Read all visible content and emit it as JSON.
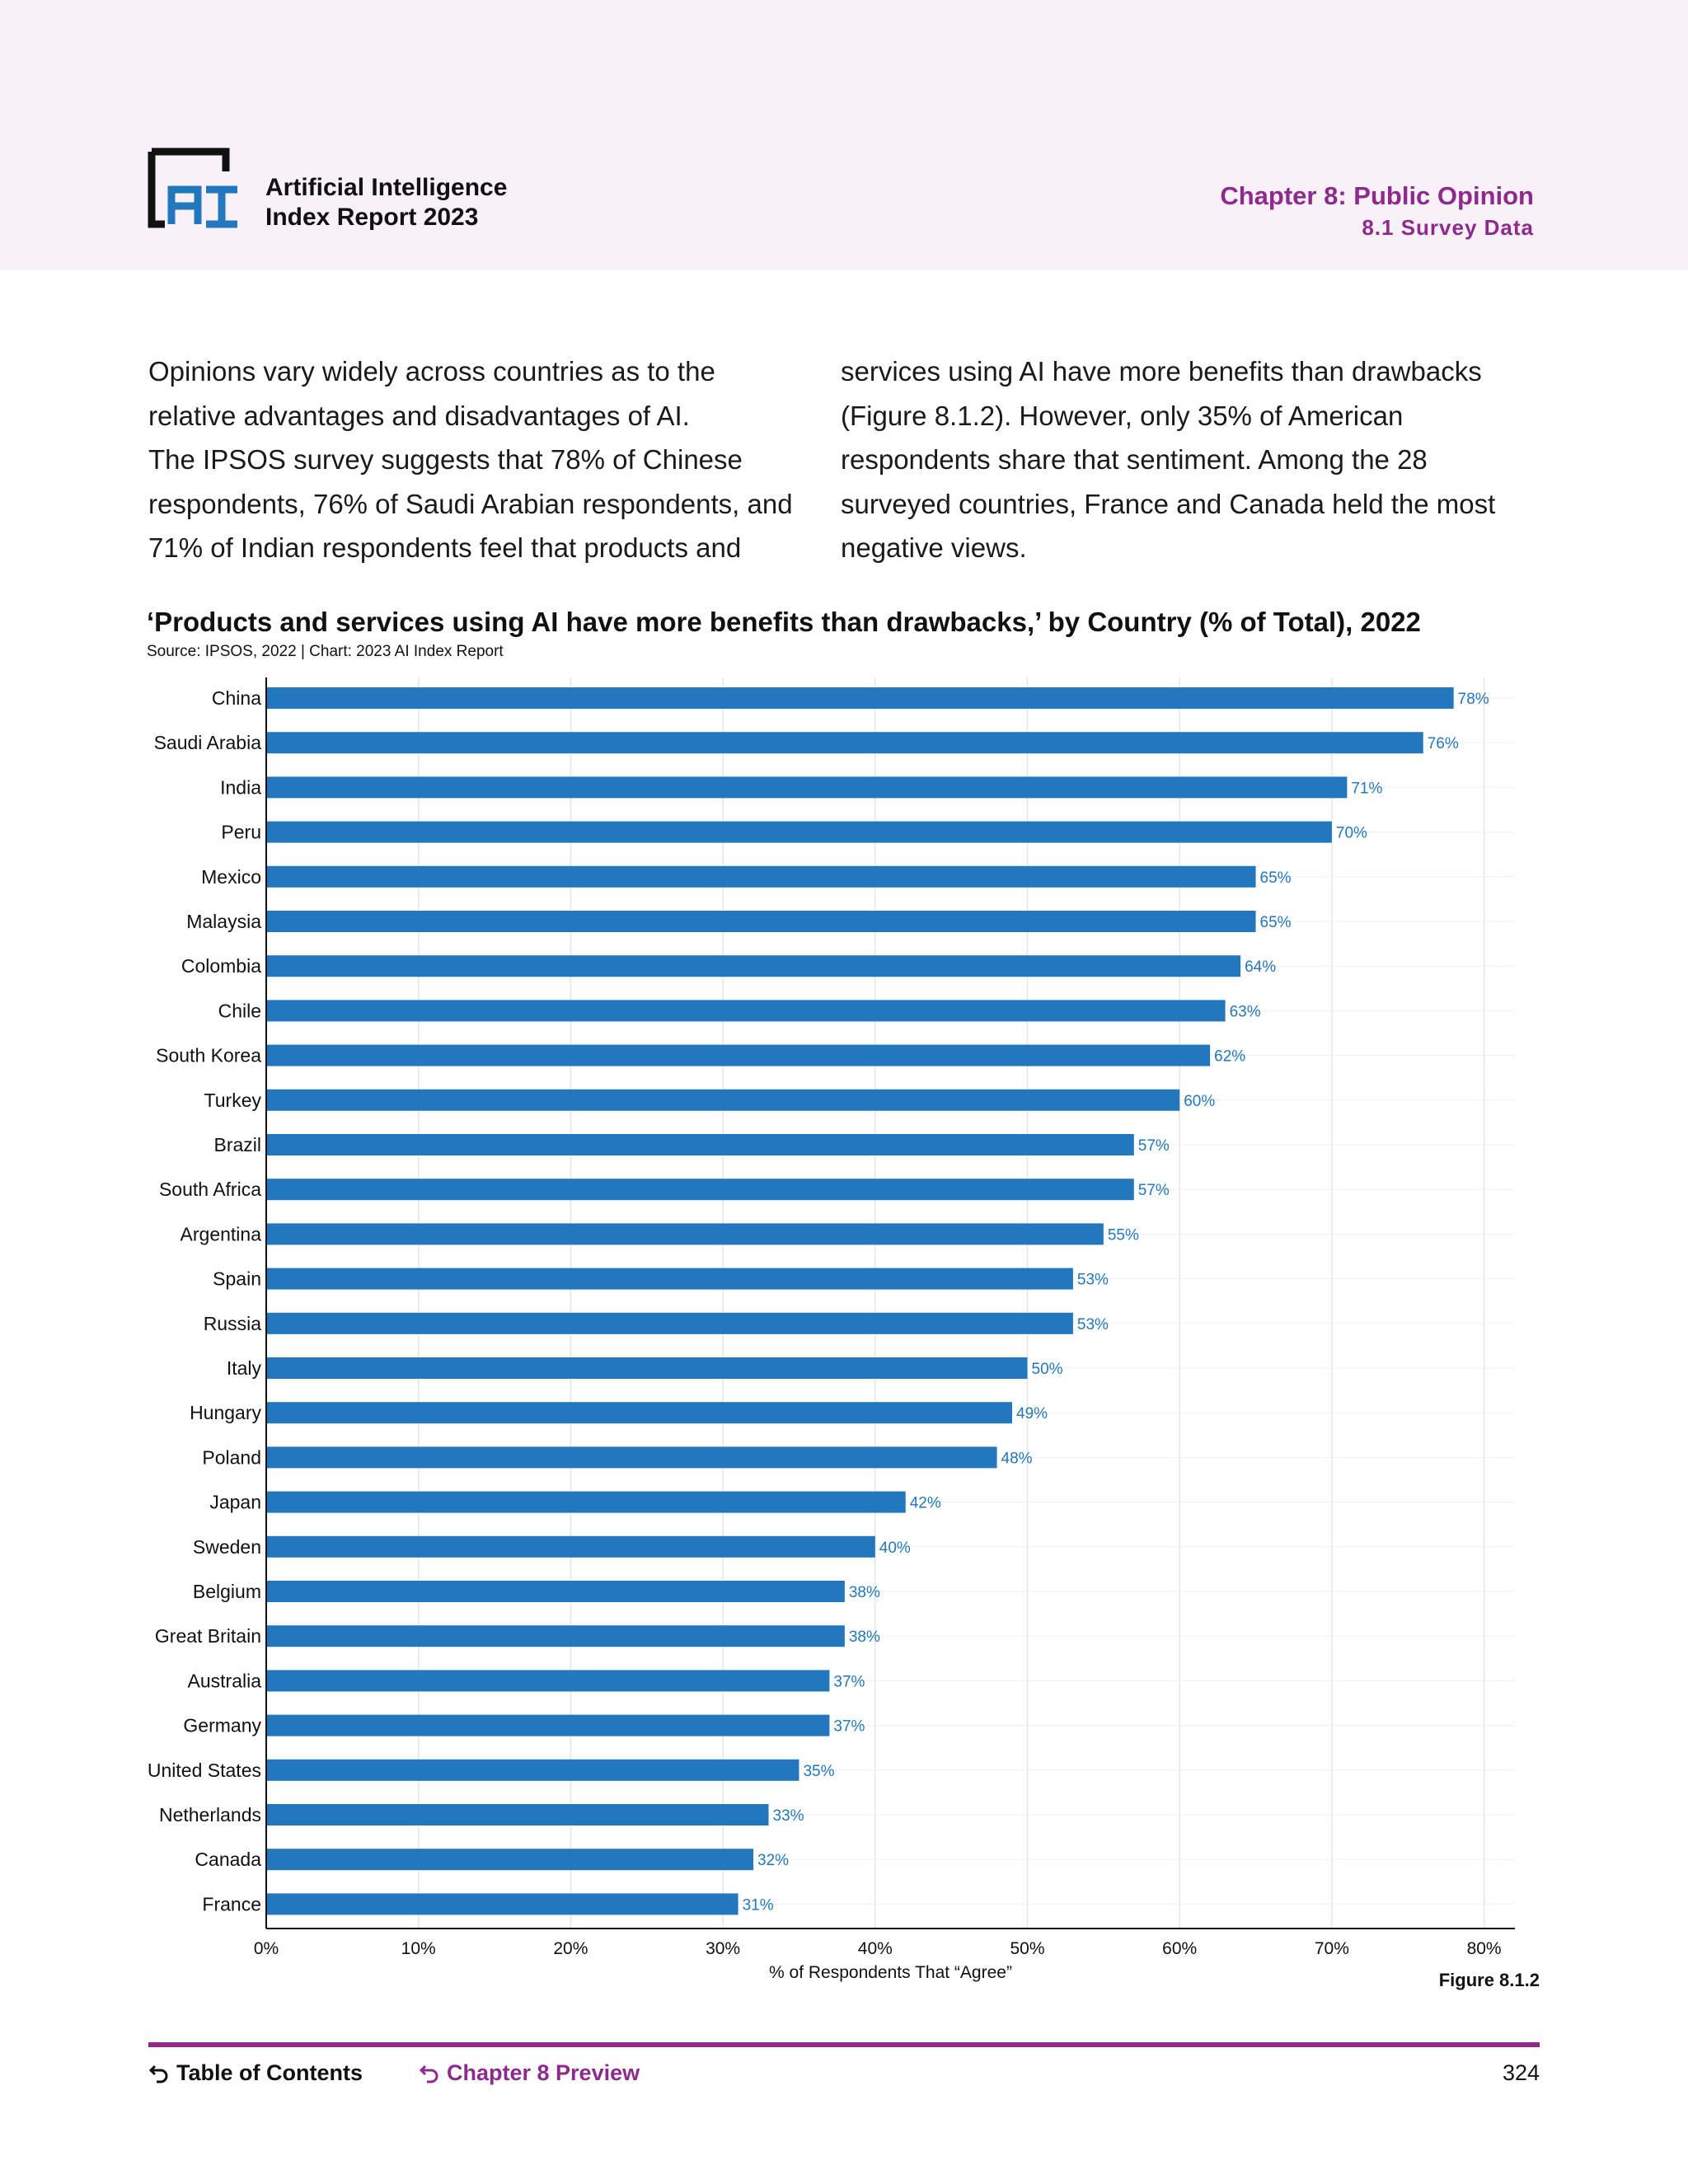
{
  "header": {
    "logo_text": "AI",
    "report_title_line1": "Artificial Intelligence",
    "report_title_line2": "Index Report 2023",
    "chapter_title": "Chapter 8: Public Opinion",
    "chapter_subtitle": "8.1 Survey Data"
  },
  "body": {
    "left_lines": [
      "Opinions vary widely across countries as to the",
      "relative advantages and disadvantages of AI.",
      "The IPSOS survey suggests that 78% of Chinese",
      "respondents, 76% of Saudi Arabian respondents, and",
      "71% of Indian respondents feel that products and"
    ],
    "right_lines": [
      "services using AI have more benefits than drawbacks",
      "(Figure 8.1.2). However, only 35% of American",
      "respondents share that sentiment. Among the 28",
      "surveyed countries, France and Canada held the most",
      "negative views."
    ]
  },
  "chart_data": {
    "type": "bar",
    "orientation": "horizontal",
    "title": "‘Products and services using AI have more benefits than drawbacks,’ by Country (% of Total), 2022",
    "source": "Source: IPSOS, 2022 | Chart: 2023 AI Index Report",
    "xlabel": "% of Respondents That “Agree”",
    "ylabel": "",
    "xlim": [
      0,
      80
    ],
    "xticks": [
      "0%",
      "10%",
      "20%",
      "30%",
      "40%",
      "50%",
      "60%",
      "70%",
      "80%"
    ],
    "grid": true,
    "bar_color": "#2377bd",
    "label_color": "#2377bd",
    "categories": [
      "China",
      "Saudi Arabia",
      "India",
      "Peru",
      "Mexico",
      "Malaysia",
      "Colombia",
      "Chile",
      "South Korea",
      "Turkey",
      "Brazil",
      "South Africa",
      "Argentina",
      "Spain",
      "Russia",
      "Italy",
      "Hungary",
      "Poland",
      "Japan",
      "Sweden",
      "Belgium",
      "Great Britain",
      "Australia",
      "Germany",
      "United States",
      "Netherlands",
      "Canada",
      "France"
    ],
    "values": [
      78,
      76,
      71,
      70,
      65,
      65,
      64,
      63,
      62,
      60,
      57,
      57,
      55,
      53,
      53,
      50,
      49,
      48,
      42,
      40,
      38,
      38,
      37,
      37,
      35,
      33,
      32,
      31
    ],
    "value_labels": [
      "78%",
      "76%",
      "71%",
      "70%",
      "65%",
      "65%",
      "64%",
      "63%",
      "62%",
      "60%",
      "57%",
      "57%",
      "55%",
      "53%",
      "53%",
      "50%",
      "49%",
      "48%",
      "42%",
      "40%",
      "38%",
      "38%",
      "37%",
      "37%",
      "35%",
      "33%",
      "32%",
      "31%"
    ]
  },
  "figure_label": "Figure 8.1.2",
  "footer": {
    "toc_label": "Table of Contents",
    "chapter_preview_label": "Chapter 8 Preview",
    "page_number": "324"
  },
  "colors": {
    "accent_purple": "#8e2a8e",
    "header_band": "#f8f1f8",
    "logo_blue": "#2377bd"
  },
  "icons": {
    "back_arrow": "return-arrow-icon"
  }
}
